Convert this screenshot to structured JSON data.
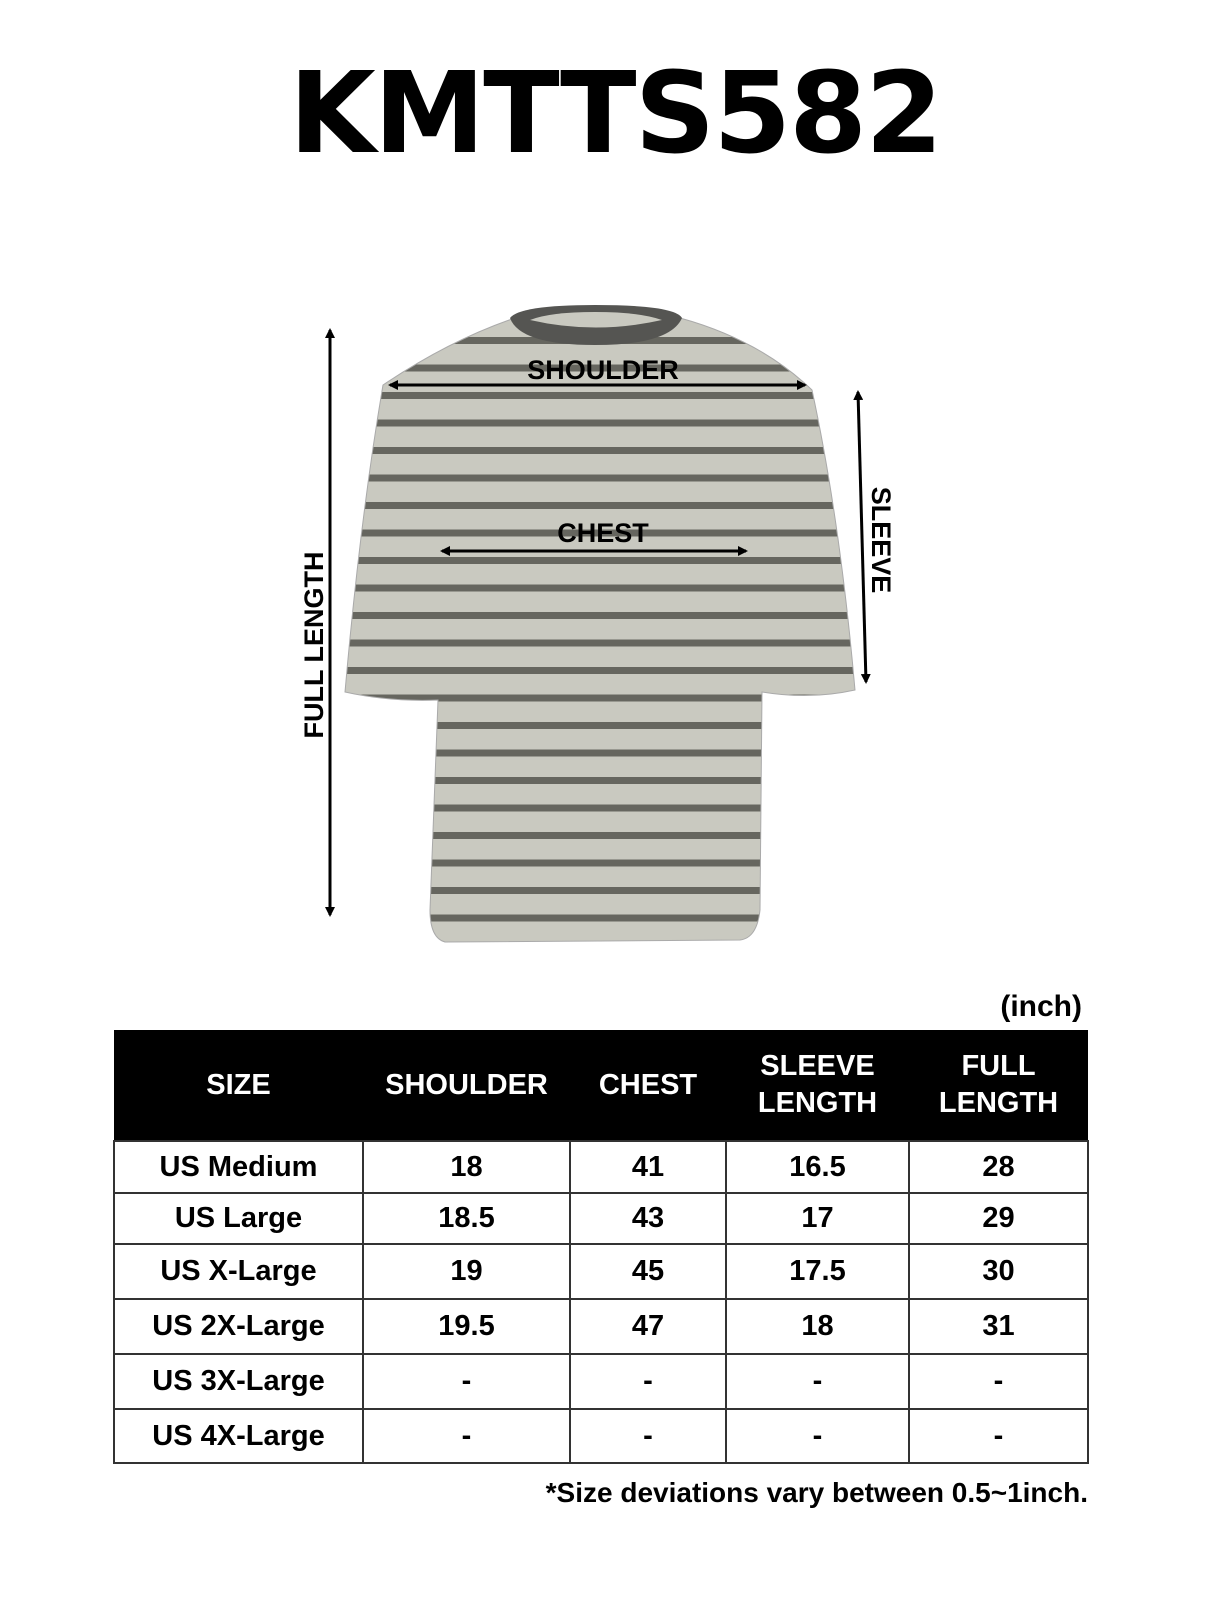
{
  "title": "KMTTS582",
  "diagram": {
    "shoulder": "SHOULDER",
    "chest": "CHEST",
    "sleeve": "SLEEVE",
    "full_length": "FULL LENGTH",
    "colors": {
      "body": "#c9c9c0",
      "stripe": "#66665f",
      "collar": "#555552"
    }
  },
  "unit": "(inch)",
  "table": {
    "headers": [
      "SIZE",
      "SHOULDER",
      "CHEST",
      "SLEEVE LENGTH",
      "FULL LENGTH"
    ],
    "rows": [
      [
        "US Medium",
        "18",
        "41",
        "16.5",
        "28"
      ],
      [
        "US Large",
        "18.5",
        "43",
        "17",
        "29"
      ],
      [
        "US X-Large",
        "19",
        "45",
        "17.5",
        "30"
      ],
      [
        "US 2X-Large",
        "19.5",
        "47",
        "18",
        "31"
      ],
      [
        "US 3X-Large",
        "-",
        "-",
        "-",
        "-"
      ],
      [
        "US 4X-Large",
        "-",
        "-",
        "-",
        "-"
      ]
    ]
  },
  "note": "*Size deviations vary between 0.5~1inch."
}
